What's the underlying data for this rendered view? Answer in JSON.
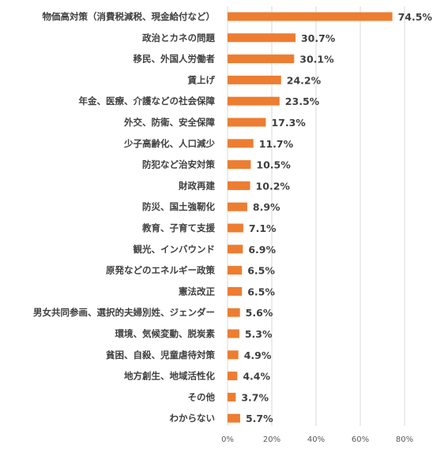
{
  "chart_data": {
    "type": "bar",
    "orientation": "horizontal",
    "title": "",
    "xlabel": "",
    "ylabel": "",
    "categories": [
      "物価高対策（消費税減税、現金給付など）",
      "政治とカネの問題",
      "移民、外国人労働者",
      "賃上げ",
      "年金、医療、介護などの社会保障",
      "外交、防衛、安全保障",
      "少子高齢化、人口減少",
      "防犯など治安対策",
      "財政再建",
      "防災、国土強靭化",
      "教育、子育て支援",
      "観光、インバウンド",
      "原発などのエネルギー政策",
      "憲法改正",
      "男女共同参画、選択的夫婦別姓、ジェンダー",
      "環境、気候変動、脱炭素",
      "貧困、自殺、児童虐待対策",
      "地方創生、地域活性化",
      "その他",
      "わからない"
    ],
    "values": [
      74.5,
      30.7,
      30.1,
      24.2,
      23.5,
      17.3,
      11.7,
      10.5,
      10.2,
      8.9,
      7.1,
      6.9,
      6.5,
      6.5,
      5.6,
      5.3,
      4.9,
      4.4,
      3.7,
      5.7
    ],
    "value_labels": [
      "74.5%",
      "30.7%",
      "30.1%",
      "24.2%",
      "23.5%",
      "17.3%",
      "11.7%",
      "10.5%",
      "10.2%",
      "8.9%",
      "7.1%",
      "6.9%",
      "6.5%",
      "6.5%",
      "5.6%",
      "5.3%",
      "4.9%",
      "4.4%",
      "3.7%",
      "5.7%"
    ],
    "xlim": [
      0,
      80
    ],
    "xticks": [
      0,
      20,
      40,
      60,
      80
    ],
    "xtick_labels": [
      "0%",
      "20%",
      "40%",
      "60%",
      "80%"
    ],
    "grid": true,
    "legend": "none",
    "bar_color": "#ed7d31"
  }
}
